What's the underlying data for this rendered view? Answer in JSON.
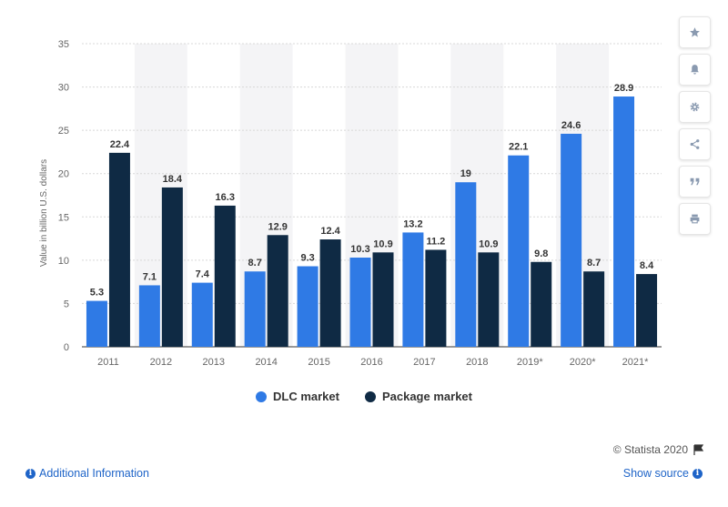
{
  "chart_data": {
    "type": "bar",
    "categories": [
      "2011",
      "2012",
      "2013",
      "2014",
      "2015",
      "2016",
      "2017",
      "2018",
      "2019*",
      "2020*",
      "2021*"
    ],
    "series": [
      {
        "name": "DLC market",
        "color": "#2f7ae5",
        "values": [
          5.3,
          7.1,
          7.4,
          8.7,
          9.3,
          10.3,
          13.2,
          19,
          22.1,
          24.6,
          28.9
        ]
      },
      {
        "name": "Package market",
        "color": "#0f2a44",
        "values": [
          22.4,
          18.4,
          16.3,
          12.9,
          12.4,
          10.9,
          11.2,
          10.9,
          9.8,
          8.7,
          8.4
        ]
      }
    ],
    "ylabel": "Value in billion U.S. dollars",
    "xlabel": "",
    "ylim": [
      0,
      35
    ],
    "yticks": [
      0,
      5,
      10,
      15,
      20,
      25,
      30,
      35
    ],
    "grid": true,
    "legend": "bottom-center"
  },
  "legend": {
    "dlc": "DLC market",
    "package": "Package market"
  },
  "tools": [
    "star-icon",
    "bell-icon",
    "gear-icon",
    "share-icon",
    "quote-icon",
    "print-icon"
  ],
  "footer": {
    "credit": "© Statista 2020",
    "additional_info": "Additional Information",
    "show_source": "Show source"
  }
}
